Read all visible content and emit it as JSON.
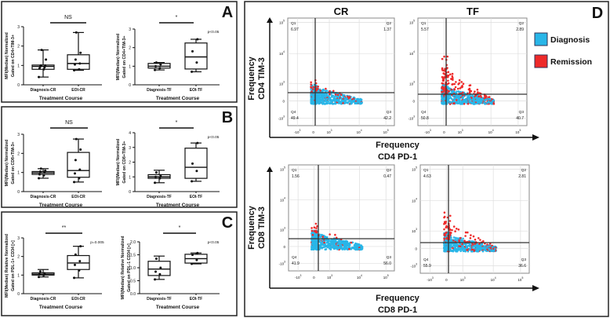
{
  "figure": {
    "panel_labels": [
      "A",
      "B",
      "C",
      "D"
    ]
  },
  "panel_D": {
    "columns": [
      "CR",
      "TF"
    ],
    "legend": [
      {
        "label": "Diagnosis",
        "color": "#29b6e8"
      },
      {
        "label": "Remission",
        "color": "#ee2a2a"
      }
    ],
    "rows": [
      {
        "xlabel": [
          "Frequency",
          "CD4 PD-1"
        ],
        "ylabel": [
          "Frequency",
          "CD4 TIM-3"
        ]
      },
      {
        "xlabel": [
          "Frequency",
          "CD8 PD-1"
        ],
        "ylabel": [
          "Frequency",
          "CD8 TIM-3"
        ]
      }
    ]
  },
  "chart_data": [
    {
      "type": "box",
      "panel": "A",
      "significance": "NS",
      "pvalue": "",
      "ylabel": [
        "MFI(Median)  Normalized",
        "Gated on CD4+TIM-3+"
      ],
      "xlabel": "Treatment Course",
      "ylim": [
        0,
        3
      ],
      "yticks": [
        "0",
        "1",
        "2",
        "3"
      ],
      "categories": [
        "Diagnosis-CR",
        "EOI-CR"
      ],
      "boxes": [
        {
          "min": 0.4,
          "q1": 0.8,
          "median": 0.95,
          "q3": 1.02,
          "max": 1.8,
          "points": [
            0.4,
            0.8,
            0.85,
            0.9,
            0.95,
            1.0,
            1.0,
            1.3,
            1.8
          ]
        },
        {
          "min": 0.75,
          "q1": 0.8,
          "median": 1.1,
          "q3": 1.55,
          "max": 2.7,
          "points": [
            0.75,
            0.8,
            1.05,
            1.1,
            1.3,
            1.65,
            2.7
          ]
        }
      ]
    },
    {
      "type": "box",
      "panel": "A",
      "significance": "*",
      "pvalue": "p<0.05",
      "ylabel": [
        "MFI(Median)  Normalized",
        "Gated on CD4+TIM-3+"
      ],
      "xlabel": "Treatment Course",
      "ylim": [
        0,
        3
      ],
      "yticks": [
        "0",
        "1",
        "2",
        "3"
      ],
      "categories": [
        "Diagnosis-TF",
        "EOI-TF"
      ],
      "boxes": [
        {
          "min": 0.8,
          "q1": 0.9,
          "median": 1.0,
          "q3": 1.15,
          "max": 1.2,
          "points": [
            0.8,
            0.9,
            1.0,
            1.1,
            1.2
          ]
        },
        {
          "min": 0.7,
          "q1": 0.85,
          "median": 1.5,
          "q3": 2.25,
          "max": 2.45,
          "points": [
            0.7,
            1.2,
            1.8,
            2.45
          ]
        }
      ]
    },
    {
      "type": "box",
      "panel": "B",
      "significance": "NS",
      "pvalue": "",
      "ylabel": [
        "MFI(Median)  Normalized",
        "Gated on CD8+TIM-3+"
      ],
      "xlabel": "Treatment Course",
      "ylim": [
        0,
        3
      ],
      "yticks": [
        "0",
        "1",
        "2",
        "3"
      ],
      "categories": [
        "Diagnosis-CR",
        "EOI-CR"
      ],
      "boxes": [
        {
          "min": 0.7,
          "q1": 0.9,
          "median": 0.98,
          "q3": 1.05,
          "max": 1.2,
          "points": [
            0.7,
            0.85,
            0.9,
            1.0,
            1.05,
            1.1,
            1.2
          ]
        },
        {
          "min": 0.5,
          "q1": 0.75,
          "median": 1.1,
          "q3": 2.05,
          "max": 2.75,
          "points": [
            0.5,
            0.7,
            0.95,
            1.15,
            1.65,
            2.2,
            2.75
          ]
        }
      ]
    },
    {
      "type": "box",
      "panel": "B",
      "significance": "*",
      "pvalue": "p<0.05",
      "ylabel": [
        "MFI(Median)  Normalized",
        "Gated on CD8+TIM-3+"
      ],
      "xlabel": "Treatment Course",
      "ylim": [
        0,
        4
      ],
      "yticks": [
        "0",
        "1",
        "2",
        "3",
        "4"
      ],
      "categories": [
        "Diagnosis-TF",
        "EOI-TF"
      ],
      "boxes": [
        {
          "min": 0.6,
          "q1": 0.9,
          "median": 1.0,
          "q3": 1.15,
          "max": 1.45,
          "points": [
            0.6,
            0.9,
            1.0,
            1.1,
            1.3
          ]
        },
        {
          "min": 0.7,
          "q1": 0.9,
          "median": 1.65,
          "q3": 2.95,
          "max": 3.3,
          "points": [
            0.7,
            1.4,
            1.9,
            3.3
          ]
        }
      ]
    },
    {
      "type": "box",
      "panel": "C",
      "significance": "**",
      "pvalue": "p=0.005",
      "ylabel": [
        "MFI(Median) Relative Normalized",
        "Gated on PDL-1+ CD34 [+]"
      ],
      "xlabel": "Treatment Course",
      "ylim": [
        0,
        3
      ],
      "yticks": [
        "0",
        "1",
        "2",
        "3"
      ],
      "categories": [
        "Diagnosis-CR",
        "EOI-CR"
      ],
      "boxes": [
        {
          "min": 0.9,
          "q1": 1.0,
          "median": 1.05,
          "q3": 1.12,
          "max": 1.3,
          "points": [
            0.9,
            1.0,
            1.05,
            1.1,
            1.2
          ]
        },
        {
          "min": 0.85,
          "q1": 1.3,
          "median": 1.65,
          "q3": 2.05,
          "max": 2.55,
          "points": [
            0.85,
            1.25,
            1.55,
            1.75,
            2.1,
            2.55
          ]
        }
      ]
    },
    {
      "type": "box",
      "panel": "C",
      "significance": "*",
      "pvalue": "p<0.05",
      "ylabel": [
        "MFI(Median) Relative Normalized",
        "Gated on PDL-1 CD34 [+]"
      ],
      "xlabel": "Treatment Course",
      "ylim": [
        0,
        2.0
      ],
      "yticks": [
        "0.0",
        "0.5",
        "1.0",
        "1.5",
        "2.0"
      ],
      "categories": [
        "Diagnosis-TF",
        "EOI-TF"
      ],
      "boxes": [
        {
          "min": 0.55,
          "q1": 0.7,
          "median": 0.95,
          "q3": 1.25,
          "max": 1.45,
          "points": [
            0.55,
            0.75,
            0.85,
            1.0,
            1.35
          ]
        },
        {
          "min": 1.15,
          "q1": 1.18,
          "median": 1.35,
          "q3": 1.52,
          "max": 1.57,
          "points": [
            1.15,
            1.3,
            1.5,
            1.57
          ]
        }
      ]
    },
    {
      "type": "scatter",
      "panel": "D",
      "column": "CR",
      "row": 0,
      "quadrants": {
        "Q1": "6.97",
        "Q2": "1.37",
        "Q3": "42.2",
        "Q4": "49.4"
      },
      "xticks": [
        "-10^3",
        "0",
        "10^3",
        "10^4",
        "10^5"
      ],
      "yticks": [
        "10^5",
        "10^4",
        "10^3",
        "0",
        "-10^3"
      ]
    },
    {
      "type": "scatter",
      "panel": "D",
      "column": "TF",
      "row": 0,
      "quadrants": {
        "Q1": "5.57",
        "Q2": "2.89",
        "Q3": "40.7",
        "Q4": "50.8"
      },
      "xticks": [
        "-10^3",
        "0",
        "10^3",
        "10^4",
        "10^5"
      ],
      "yticks": [
        "10^5",
        "10^4",
        "10^3",
        "0",
        "-10^3"
      ]
    },
    {
      "type": "scatter",
      "panel": "D",
      "column": "CR",
      "row": 1,
      "quadrants": {
        "Q1": "1.56",
        "Q2": "0.47",
        "Q3": "56.0",
        "Q4": "41.9"
      },
      "xticks": [
        "-10^3",
        "0",
        "10^3",
        "10^4",
        "10^5"
      ],
      "yticks": [
        "10^5",
        "10^4",
        "10^3",
        "0",
        "-10^3"
      ]
    },
    {
      "type": "scatter",
      "panel": "D",
      "column": "TF",
      "row": 1,
      "quadrants": {
        "Q1": "4.63",
        "Q2": "2.81",
        "Q3": "36.6",
        "Q4": "55.9"
      },
      "xticks": [
        "-10^3",
        "0",
        "10^3",
        "10^4",
        "10^5"
      ],
      "yticks": [
        "10^5",
        "10^4",
        "10^3",
        "0",
        "-10^3"
      ]
    }
  ]
}
